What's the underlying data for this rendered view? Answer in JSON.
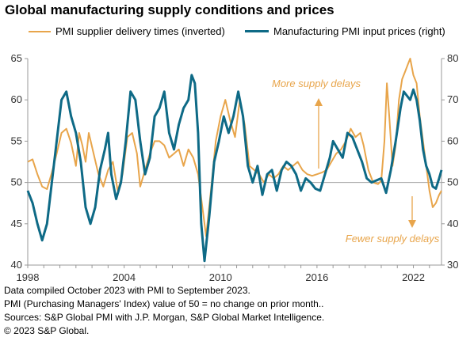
{
  "title": "Global manufacturing supply conditions and prices",
  "colors": {
    "supplier": "#e8a54b",
    "prices": "#0e6a86",
    "axis": "#999999",
    "baseline": "#a6a6a6"
  },
  "chart_data": {
    "type": "line",
    "title": "Global manufacturing supply conditions and prices",
    "legend_position": "top",
    "grid": false,
    "x_ticks": [
      "1998",
      "2004",
      "2010",
      "2016",
      "2022"
    ],
    "x_range": [
      1998.0,
      2023.75
    ],
    "y_left": {
      "range": [
        40,
        65
      ],
      "ticks": [
        "40",
        "45",
        "50",
        "55",
        "60",
        "65"
      ]
    },
    "y_right": {
      "range": [
        30,
        80
      ],
      "ticks": [
        "30",
        "40",
        "50",
        "60",
        "70",
        "80"
      ]
    },
    "reference_line_left": 50,
    "series": [
      {
        "name": "PMI supplier delivery times (inverted)",
        "axis": "left",
        "points": [
          [
            1998.0,
            52.5
          ],
          [
            1998.3,
            52.8
          ],
          [
            1998.6,
            51.0
          ],
          [
            1998.9,
            49.5
          ],
          [
            1999.2,
            49.2
          ],
          [
            1999.5,
            51.2
          ],
          [
            1999.8,
            53.5
          ],
          [
            2000.1,
            56.0
          ],
          [
            2000.4,
            56.5
          ],
          [
            2000.7,
            54.8
          ],
          [
            2001.0,
            52.0
          ],
          [
            2001.2,
            56.0
          ],
          [
            2001.4,
            54.5
          ],
          [
            2001.6,
            52.5
          ],
          [
            2001.8,
            56.0
          ],
          [
            2002.1,
            53.5
          ],
          [
            2002.4,
            51.0
          ],
          [
            2002.7,
            49.5
          ],
          [
            2003.0,
            51.5
          ],
          [
            2003.3,
            52.5
          ],
          [
            2003.6,
            49.0
          ],
          [
            2003.9,
            51.0
          ],
          [
            2004.2,
            55.5
          ],
          [
            2004.5,
            56.0
          ],
          [
            2004.8,
            53.5
          ],
          [
            2005.0,
            49.5
          ],
          [
            2005.3,
            51.5
          ],
          [
            2005.6,
            53.5
          ],
          [
            2005.9,
            55.0
          ],
          [
            2006.2,
            55.0
          ],
          [
            2006.5,
            54.5
          ],
          [
            2006.8,
            53.0
          ],
          [
            2007.1,
            53.5
          ],
          [
            2007.4,
            54.0
          ],
          [
            2007.7,
            52.0
          ],
          [
            2008.0,
            54.0
          ],
          [
            2008.3,
            53.0
          ],
          [
            2008.6,
            51.0
          ],
          [
            2008.9,
            46.5
          ],
          [
            2009.1,
            43.5
          ],
          [
            2009.4,
            49.0
          ],
          [
            2009.7,
            55.0
          ],
          [
            2010.0,
            58.0
          ],
          [
            2010.3,
            60.0
          ],
          [
            2010.6,
            57.5
          ],
          [
            2010.9,
            55.5
          ],
          [
            2011.2,
            60.0
          ],
          [
            2011.5,
            57.0
          ],
          [
            2011.8,
            52.0
          ],
          [
            2012.1,
            51.5
          ],
          [
            2012.4,
            51.0
          ],
          [
            2012.7,
            50.0
          ],
          [
            2013.0,
            51.0
          ],
          [
            2013.3,
            50.5
          ],
          [
            2013.6,
            51.0
          ],
          [
            2013.9,
            52.0
          ],
          [
            2014.2,
            51.5
          ],
          [
            2014.5,
            52.0
          ],
          [
            2014.8,
            52.5
          ],
          [
            2015.1,
            51.5
          ],
          [
            2015.4,
            51.0
          ],
          [
            2015.7,
            50.8
          ],
          [
            2016.0,
            51.0
          ],
          [
            2016.3,
            51.2
          ],
          [
            2016.6,
            51.5
          ],
          [
            2016.9,
            52.5
          ],
          [
            2017.2,
            53.5
          ],
          [
            2017.5,
            54.0
          ],
          [
            2017.8,
            55.0
          ],
          [
            2018.1,
            56.5
          ],
          [
            2018.4,
            55.5
          ],
          [
            2018.7,
            56.0
          ],
          [
            2018.9,
            54.5
          ],
          [
            2019.2,
            51.5
          ],
          [
            2019.5,
            50.0
          ],
          [
            2019.8,
            49.8
          ],
          [
            2020.0,
            50.2
          ],
          [
            2020.2,
            55.0
          ],
          [
            2020.35,
            62.0
          ],
          [
            2020.5,
            58.0
          ],
          [
            2020.7,
            52.0
          ],
          [
            2020.9,
            54.5
          ],
          [
            2021.1,
            60.0
          ],
          [
            2021.3,
            62.5
          ],
          [
            2021.5,
            63.5
          ],
          [
            2021.7,
            64.5
          ],
          [
            2021.8,
            65.0
          ],
          [
            2022.0,
            63.0
          ],
          [
            2022.2,
            62.0
          ],
          [
            2022.4,
            58.0
          ],
          [
            2022.6,
            55.0
          ],
          [
            2022.8,
            52.0
          ],
          [
            2023.0,
            49.0
          ],
          [
            2023.2,
            47.0
          ],
          [
            2023.4,
            47.5
          ],
          [
            2023.6,
            48.5
          ],
          [
            2023.75,
            49.0
          ]
        ]
      },
      {
        "name": "Manufacturing PMI input prices (right)",
        "axis": "right",
        "points": [
          [
            1998.0,
            48.0
          ],
          [
            1998.3,
            45.0
          ],
          [
            1998.6,
            40.0
          ],
          [
            1998.9,
            36.0
          ],
          [
            1999.2,
            40.0
          ],
          [
            1999.5,
            50.0
          ],
          [
            1999.8,
            60.0
          ],
          [
            2000.1,
            70.0
          ],
          [
            2000.4,
            72.0
          ],
          [
            2000.7,
            66.0
          ],
          [
            2001.0,
            62.0
          ],
          [
            2001.3,
            55.0
          ],
          [
            2001.6,
            44.0
          ],
          [
            2001.9,
            40.0
          ],
          [
            2002.2,
            44.0
          ],
          [
            2002.5,
            53.0
          ],
          [
            2002.8,
            58.0
          ],
          [
            2003.0,
            62.0
          ],
          [
            2003.2,
            52.0
          ],
          [
            2003.5,
            46.0
          ],
          [
            2003.8,
            50.0
          ],
          [
            2004.1,
            60.0
          ],
          [
            2004.4,
            72.0
          ],
          [
            2004.7,
            70.0
          ],
          [
            2005.0,
            60.0
          ],
          [
            2005.3,
            52.0
          ],
          [
            2005.6,
            56.0
          ],
          [
            2005.9,
            66.0
          ],
          [
            2006.2,
            68.0
          ],
          [
            2006.5,
            72.0
          ],
          [
            2006.8,
            62.0
          ],
          [
            2007.1,
            58.0
          ],
          [
            2007.4,
            64.0
          ],
          [
            2007.7,
            68.0
          ],
          [
            2008.0,
            70.0
          ],
          [
            2008.2,
            76.0
          ],
          [
            2008.4,
            74.0
          ],
          [
            2008.6,
            62.0
          ],
          [
            2008.8,
            40.0
          ],
          [
            2009.0,
            31.0
          ],
          [
            2009.3,
            42.0
          ],
          [
            2009.6,
            55.0
          ],
          [
            2009.9,
            60.0
          ],
          [
            2010.2,
            66.0
          ],
          [
            2010.5,
            62.0
          ],
          [
            2010.8,
            66.0
          ],
          [
            2011.1,
            72.0
          ],
          [
            2011.4,
            66.0
          ],
          [
            2011.7,
            54.0
          ],
          [
            2012.0,
            50.0
          ],
          [
            2012.3,
            54.0
          ],
          [
            2012.6,
            47.0
          ],
          [
            2012.9,
            52.0
          ],
          [
            2013.2,
            53.0
          ],
          [
            2013.5,
            48.0
          ],
          [
            2013.8,
            53.0
          ],
          [
            2014.1,
            55.0
          ],
          [
            2014.4,
            54.0
          ],
          [
            2014.7,
            52.0
          ],
          [
            2015.0,
            48.0
          ],
          [
            2015.3,
            51.0
          ],
          [
            2015.6,
            50.0
          ],
          [
            2015.9,
            48.5
          ],
          [
            2016.2,
            48.0
          ],
          [
            2016.5,
            52.0
          ],
          [
            2016.8,
            56.0
          ],
          [
            2017.0,
            60.0
          ],
          [
            2017.3,
            58.0
          ],
          [
            2017.6,
            56.0
          ],
          [
            2017.9,
            62.0
          ],
          [
            2018.2,
            61.0
          ],
          [
            2018.5,
            58.0
          ],
          [
            2018.8,
            55.0
          ],
          [
            2019.1,
            51.0
          ],
          [
            2019.4,
            50.0
          ],
          [
            2019.7,
            50.5
          ],
          [
            2020.0,
            51.0
          ],
          [
            2020.3,
            47.5
          ],
          [
            2020.6,
            53.0
          ],
          [
            2020.9,
            60.0
          ],
          [
            2021.2,
            68.0
          ],
          [
            2021.4,
            72.0
          ],
          [
            2021.6,
            71.0
          ],
          [
            2021.8,
            70.0
          ],
          [
            2022.0,
            72.5
          ],
          [
            2022.2,
            70.0
          ],
          [
            2022.4,
            65.0
          ],
          [
            2022.6,
            58.0
          ],
          [
            2022.8,
            54.0
          ],
          [
            2023.0,
            52.0
          ],
          [
            2023.2,
            49.0
          ],
          [
            2023.4,
            48.5
          ],
          [
            2023.6,
            51.0
          ],
          [
            2023.75,
            53.0
          ]
        ]
      }
    ],
    "annotations": [
      {
        "text": "More supply delays",
        "direction": "up"
      },
      {
        "text": "Fewer supply delays",
        "direction": "down"
      }
    ]
  },
  "footnotes": [
    "Data compiled October 2023 with PMI to September 2023.",
    "PMI (Purchasing Managers' Index) value of 50 = no change on prior month..",
    "Sources: S&P Global PMI with J.P. Morgan, S&P Global Market Intelligence.",
    "© 2023 S&P Global."
  ]
}
